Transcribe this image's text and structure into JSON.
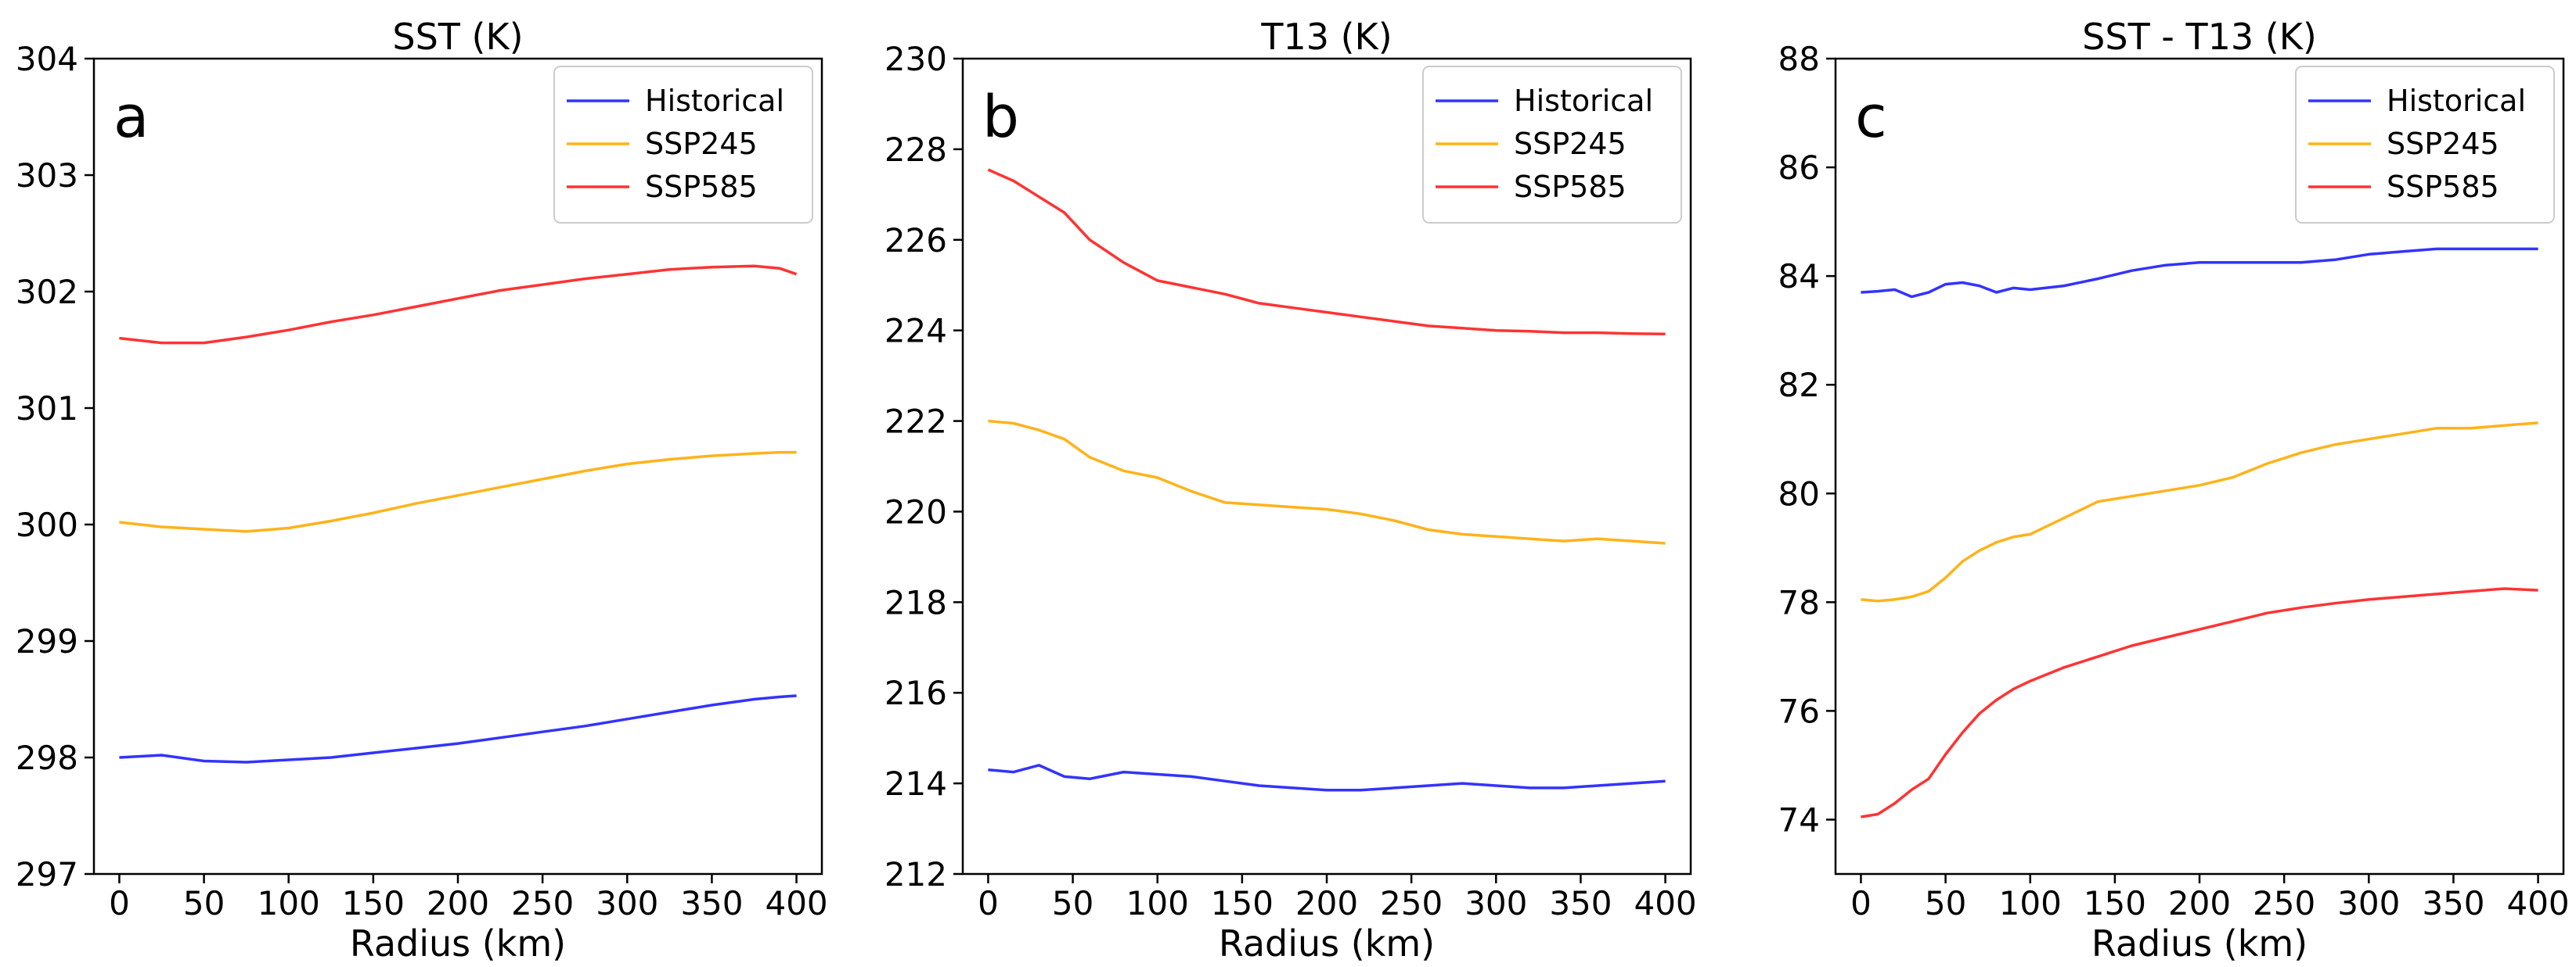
{
  "chart_data": [
    {
      "type": "line",
      "panel_letter": "a",
      "title": "SST (K)",
      "xlabel": "Radius (km)",
      "ylabel": "",
      "xlim": [
        -15,
        415
      ],
      "ylim": [
        297,
        304
      ],
      "xticks": [
        0,
        50,
        100,
        150,
        200,
        250,
        300,
        350,
        400
      ],
      "yticks": [
        297,
        298,
        299,
        300,
        301,
        302,
        303,
        304
      ],
      "legend_position": "top-right",
      "x": [
        0,
        25,
        50,
        75,
        100,
        125,
        150,
        175,
        200,
        225,
        250,
        275,
        300,
        325,
        350,
        375,
        390,
        400
      ],
      "series": [
        {
          "name": "Historical",
          "color": "#3333ff",
          "values": [
            298.0,
            298.02,
            297.97,
            297.96,
            297.98,
            298.0,
            298.04,
            298.08,
            298.12,
            298.17,
            298.22,
            298.27,
            298.33,
            298.39,
            298.45,
            298.5,
            298.52,
            298.53
          ]
        },
        {
          "name": "SSP245",
          "color": "#ffb31a",
          "values": [
            300.02,
            299.98,
            299.96,
            299.94,
            299.97,
            300.03,
            300.1,
            300.18,
            300.25,
            300.32,
            300.39,
            300.46,
            300.52,
            300.56,
            300.59,
            300.61,
            300.62,
            300.62
          ]
        },
        {
          "name": "SSP585",
          "color": "#ff3333",
          "values": [
            301.6,
            301.56,
            301.56,
            301.61,
            301.67,
            301.74,
            301.8,
            301.87,
            301.94,
            302.01,
            302.06,
            302.11,
            302.15,
            302.19,
            302.21,
            302.22,
            302.2,
            302.15
          ]
        }
      ]
    },
    {
      "type": "line",
      "panel_letter": "b",
      "title": "T13 (K)",
      "xlabel": "Radius (km)",
      "ylabel": "",
      "xlim": [
        -15,
        415
      ],
      "ylim": [
        212,
        230
      ],
      "xticks": [
        0,
        50,
        100,
        150,
        200,
        250,
        300,
        350,
        400
      ],
      "yticks": [
        212,
        214,
        216,
        218,
        220,
        222,
        224,
        226,
        228,
        230
      ],
      "legend_position": "top-right",
      "x": [
        0,
        15,
        30,
        45,
        60,
        80,
        100,
        120,
        140,
        160,
        180,
        200,
        220,
        240,
        260,
        280,
        300,
        320,
        340,
        360,
        380,
        400
      ],
      "series": [
        {
          "name": "Historical",
          "color": "#3333ff",
          "values": [
            214.3,
            214.25,
            214.4,
            214.15,
            214.1,
            214.25,
            214.2,
            214.15,
            214.05,
            213.95,
            213.9,
            213.85,
            213.85,
            213.9,
            213.95,
            214.0,
            213.95,
            213.9,
            213.9,
            213.95,
            214.0,
            214.05
          ]
        },
        {
          "name": "SSP245",
          "color": "#ffb31a",
          "values": [
            222.0,
            221.95,
            221.8,
            221.6,
            221.2,
            220.9,
            220.75,
            220.45,
            220.2,
            220.15,
            220.1,
            220.05,
            219.95,
            219.8,
            219.6,
            219.5,
            219.45,
            219.4,
            219.35,
            219.4,
            219.35,
            219.3
          ]
        },
        {
          "name": "SSP585",
          "color": "#ff3333",
          "values": [
            227.55,
            227.3,
            226.95,
            226.6,
            226.0,
            225.5,
            225.1,
            224.95,
            224.8,
            224.6,
            224.5,
            224.4,
            224.3,
            224.2,
            224.1,
            224.05,
            224.0,
            223.98,
            223.95,
            223.95,
            223.93,
            223.92
          ]
        }
      ]
    },
    {
      "type": "line",
      "panel_letter": "c",
      "title": "SST - T13 (K)",
      "xlabel": "Radius (km)",
      "ylabel": "",
      "xlim": [
        -15,
        415
      ],
      "ylim": [
        73,
        88
      ],
      "xticks": [
        0,
        50,
        100,
        150,
        200,
        250,
        300,
        350,
        400
      ],
      "yticks": [
        74,
        76,
        78,
        80,
        82,
        84,
        86,
        88
      ],
      "legend_position": "top-right",
      "x": [
        0,
        10,
        20,
        30,
        40,
        50,
        60,
        70,
        80,
        90,
        100,
        120,
        140,
        160,
        180,
        200,
        220,
        240,
        260,
        280,
        300,
        320,
        340,
        360,
        380,
        400
      ],
      "series": [
        {
          "name": "Historical",
          "color": "#3333ff",
          "values": [
            83.7,
            83.72,
            83.75,
            83.62,
            83.7,
            83.85,
            83.88,
            83.82,
            83.7,
            83.78,
            83.75,
            83.82,
            83.95,
            84.1,
            84.2,
            84.25,
            84.25,
            84.25,
            84.25,
            84.3,
            84.4,
            84.45,
            84.5,
            84.5,
            84.5,
            84.5
          ]
        },
        {
          "name": "SSP245",
          "color": "#ffb31a",
          "values": [
            78.05,
            78.02,
            78.05,
            78.1,
            78.2,
            78.45,
            78.75,
            78.95,
            79.1,
            79.2,
            79.25,
            79.55,
            79.85,
            79.95,
            80.05,
            80.15,
            80.3,
            80.55,
            80.75,
            80.9,
            81.0,
            81.1,
            81.2,
            81.2,
            81.25,
            81.3
          ]
        },
        {
          "name": "SSP585",
          "color": "#ff3333",
          "values": [
            74.05,
            74.1,
            74.3,
            74.55,
            74.75,
            75.2,
            75.6,
            75.95,
            76.2,
            76.4,
            76.55,
            76.8,
            77.0,
            77.2,
            77.35,
            77.5,
            77.65,
            77.8,
            77.9,
            77.98,
            78.05,
            78.1,
            78.15,
            78.2,
            78.25,
            78.22
          ]
        }
      ]
    }
  ]
}
